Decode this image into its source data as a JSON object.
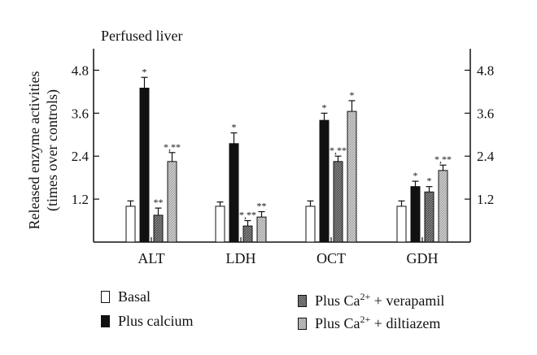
{
  "chart_data": {
    "type": "bar",
    "title": "Perfused liver",
    "ylabel": "Released enzyme activities",
    "ylabel_line2": "(times over controls)",
    "ylim": [
      0,
      5.4
    ],
    "yticks": [
      "1.2",
      "2.4",
      "3.6",
      "4.8"
    ],
    "ytick_values": [
      1.2,
      2.4,
      3.6,
      4.8
    ],
    "categories": [
      "ALT",
      "LDH",
      "OCT",
      "GDH"
    ],
    "series": [
      {
        "name": "Basal",
        "values": [
          1.0,
          1.0,
          1.0,
          1.0
        ],
        "errors": [
          0.15,
          0.12,
          0.15,
          0.15
        ],
        "sig": [
          "",
          "",
          "",
          ""
        ],
        "fill": "#ffffff"
      },
      {
        "name": "Plus calcium",
        "values": [
          4.3,
          2.75,
          3.4,
          1.55
        ],
        "errors": [
          0.3,
          0.3,
          0.2,
          0.15
        ],
        "sig": [
          "*",
          "*",
          "*",
          "*"
        ],
        "fill": "#111111"
      },
      {
        "name": "Plus Ca2+ + verapamil",
        "values": [
          0.75,
          0.45,
          2.25,
          1.4
        ],
        "errors": [
          0.2,
          0.15,
          0.15,
          0.15
        ],
        "sig": [
          "**",
          "*,**",
          "*,**",
          "*"
        ],
        "fill": "hatch-dark"
      },
      {
        "name": "Plus Ca2+ + diltiazem",
        "values": [
          2.25,
          0.7,
          3.65,
          2.0
        ],
        "errors": [
          0.25,
          0.15,
          0.3,
          0.15
        ],
        "sig": [
          "*,**",
          "**",
          "*",
          "*,**"
        ],
        "fill": "hatch-light"
      }
    ],
    "legend_placement": "bottom",
    "grid": false
  },
  "legend": {
    "basal": "Basal",
    "calcium": "Plus calcium",
    "verapamil_prefix": "Plus Ca",
    "verapamil_sup": "2+",
    "verapamil_suffix": " + verapamil",
    "diltiazem_prefix": "Plus Ca",
    "diltiazem_sup": "2+",
    "diltiazem_suffix": " + diltiazem"
  }
}
